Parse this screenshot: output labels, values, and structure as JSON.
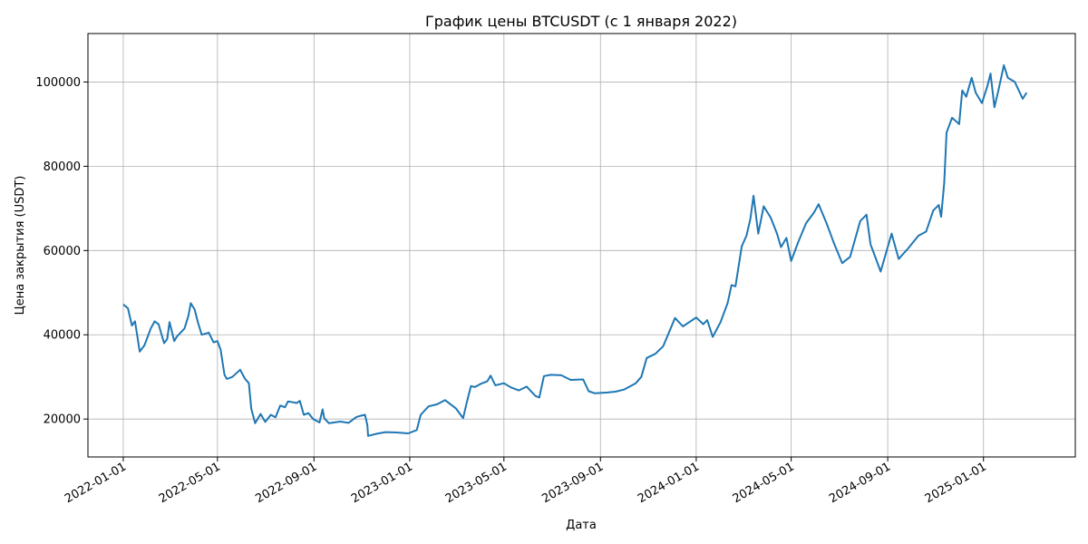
{
  "chart_data": {
    "type": "line",
    "title": "График цены BTCUSDT (с 1 января 2022)",
    "xlabel": "Дата",
    "ylabel": "Цена закрытия (USDT)",
    "x_scale": "date",
    "xlim": [
      "2021-11-17",
      "2025-04-28"
    ],
    "ylim": [
      11000,
      111500
    ],
    "grid": true,
    "line_color": "#1f77b4",
    "x_ticks": [
      "2022-01-01",
      "2022-05-01",
      "2022-09-01",
      "2023-01-01",
      "2023-05-01",
      "2023-09-01",
      "2024-01-01",
      "2024-05-01",
      "2024-09-01",
      "2025-01-01"
    ],
    "y_ticks": [
      20000,
      40000,
      60000,
      80000,
      100000
    ],
    "y_tick_labels": [
      "20000",
      "40000",
      "60000",
      "80000",
      "100000"
    ],
    "series": [
      {
        "name": "",
        "x": [
          "2022-01-01",
          "2022-01-07",
          "2022-01-12",
          "2022-01-16",
          "2022-01-22",
          "2022-01-28",
          "2022-02-05",
          "2022-02-10",
          "2022-02-15",
          "2022-02-22",
          "2022-02-26",
          "2022-03-01",
          "2022-03-07",
          "2022-03-10",
          "2022-03-20",
          "2022-03-25",
          "2022-03-28",
          "2022-04-02",
          "2022-04-06",
          "2022-04-11",
          "2022-04-20",
          "2022-04-26",
          "2022-05-01",
          "2022-05-05",
          "2022-05-10",
          "2022-05-13",
          "2022-05-20",
          "2022-05-30",
          "2022-06-05",
          "2022-06-10",
          "2022-06-13",
          "2022-06-18",
          "2022-06-25",
          "2022-07-01",
          "2022-07-08",
          "2022-07-14",
          "2022-07-20",
          "2022-07-26",
          "2022-07-30",
          "2022-08-10",
          "2022-08-14",
          "2022-08-19",
          "2022-08-25",
          "2022-08-31",
          "2022-09-08",
          "2022-09-12",
          "2022-09-14",
          "2022-09-20",
          "2022-10-01",
          "2022-10-05",
          "2022-10-15",
          "2022-10-25",
          "2022-10-29",
          "2022-11-05",
          "2022-11-08",
          "2022-11-09",
          "2022-11-20",
          "2022-12-01",
          "2022-12-15",
          "2022-12-30",
          "2023-01-10",
          "2023-01-15",
          "2023-01-25",
          "2023-02-05",
          "2023-02-15",
          "2023-03-01",
          "2023-03-10",
          "2023-03-15",
          "2023-03-20",
          "2023-03-25",
          "2023-04-01",
          "2023-04-10",
          "2023-04-14",
          "2023-04-20",
          "2023-05-01",
          "2023-05-10",
          "2023-05-20",
          "2023-05-30",
          "2023-06-10",
          "2023-06-15",
          "2023-06-21",
          "2023-06-30",
          "2023-07-13",
          "2023-07-25",
          "2023-08-10",
          "2023-08-17",
          "2023-08-25",
          "2023-09-10",
          "2023-09-20",
          "2023-10-01",
          "2023-10-16",
          "2023-10-23",
          "2023-10-30",
          "2023-11-10",
          "2023-11-20",
          "2023-12-05",
          "2023-12-15",
          "2024-01-01",
          "2024-01-10",
          "2024-01-15",
          "2024-01-22",
          "2024-02-01",
          "2024-02-10",
          "2024-02-15",
          "2024-02-20",
          "2024-02-28",
          "2024-03-05",
          "2024-03-10",
          "2024-03-14",
          "2024-03-20",
          "2024-03-27",
          "2024-04-05",
          "2024-04-13",
          "2024-04-18",
          "2024-04-25",
          "2024-05-01",
          "2024-05-10",
          "2024-05-20",
          "2024-05-30",
          "2024-06-05",
          "2024-06-15",
          "2024-06-25",
          "2024-07-05",
          "2024-07-15",
          "2024-07-28",
          "2024-08-05",
          "2024-08-10",
          "2024-08-23",
          "2024-09-06",
          "2024-09-15",
          "2024-09-27",
          "2024-10-10",
          "2024-10-20",
          "2024-10-29",
          "2024-11-05",
          "2024-11-08",
          "2024-11-12",
          "2024-11-15",
          "2024-11-22",
          "2024-12-01",
          "2024-12-05",
          "2024-12-10",
          "2024-12-17",
          "2024-12-22",
          "2024-12-30",
          "2025-01-06",
          "2025-01-10",
          "2025-01-15",
          "2025-01-20",
          "2025-01-27",
          "2025-02-01",
          "2025-02-10",
          "2025-02-20",
          "2025-02-25"
        ],
        "values": [
          47200,
          46300,
          42200,
          43200,
          36000,
          37500,
          41500,
          43200,
          42500,
          38000,
          39000,
          43000,
          38500,
          39500,
          41500,
          44500,
          47500,
          46000,
          43000,
          40000,
          40500,
          38200,
          38500,
          36500,
          30500,
          29500,
          30000,
          31700,
          29600,
          28500,
          22500,
          19000,
          21200,
          19300,
          21000,
          20400,
          23200,
          22800,
          24200,
          23800,
          24300,
          21000,
          21400,
          20000,
          19200,
          22300,
          20200,
          19000,
          19300,
          19400,
          19100,
          20500,
          20700,
          21000,
          18500,
          16000,
          16500,
          16900,
          16800,
          16600,
          17400,
          21000,
          23000,
          23500,
          24500,
          22500,
          20200,
          24200,
          27800,
          27600,
          28300,
          29000,
          30300,
          28000,
          28500,
          27500,
          26800,
          27700,
          25500,
          25100,
          30200,
          30500,
          30400,
          29300,
          29400,
          26600,
          26100,
          26300,
          26500,
          27000,
          28500,
          30000,
          34500,
          35500,
          37300,
          44000,
          42000,
          44100,
          42500,
          43500,
          39500,
          43000,
          47500,
          51800,
          51500,
          61000,
          63500,
          67500,
          73000,
          64000,
          70500,
          67800,
          64000,
          60800,
          63000,
          57500,
          62000,
          66500,
          69000,
          71000,
          66500,
          61500,
          57000,
          58500,
          67000,
          68500,
          61500,
          55000,
          64000,
          58000,
          60500,
          63500,
          64500,
          69500,
          70800,
          68000,
          76000,
          88000,
          91500,
          90000,
          98000,
          96500,
          101000,
          97500,
          95000,
          99000,
          102000,
          94000,
          98000,
          104000,
          101000,
          100000,
          96000,
          97500
        ]
      }
    ]
  }
}
